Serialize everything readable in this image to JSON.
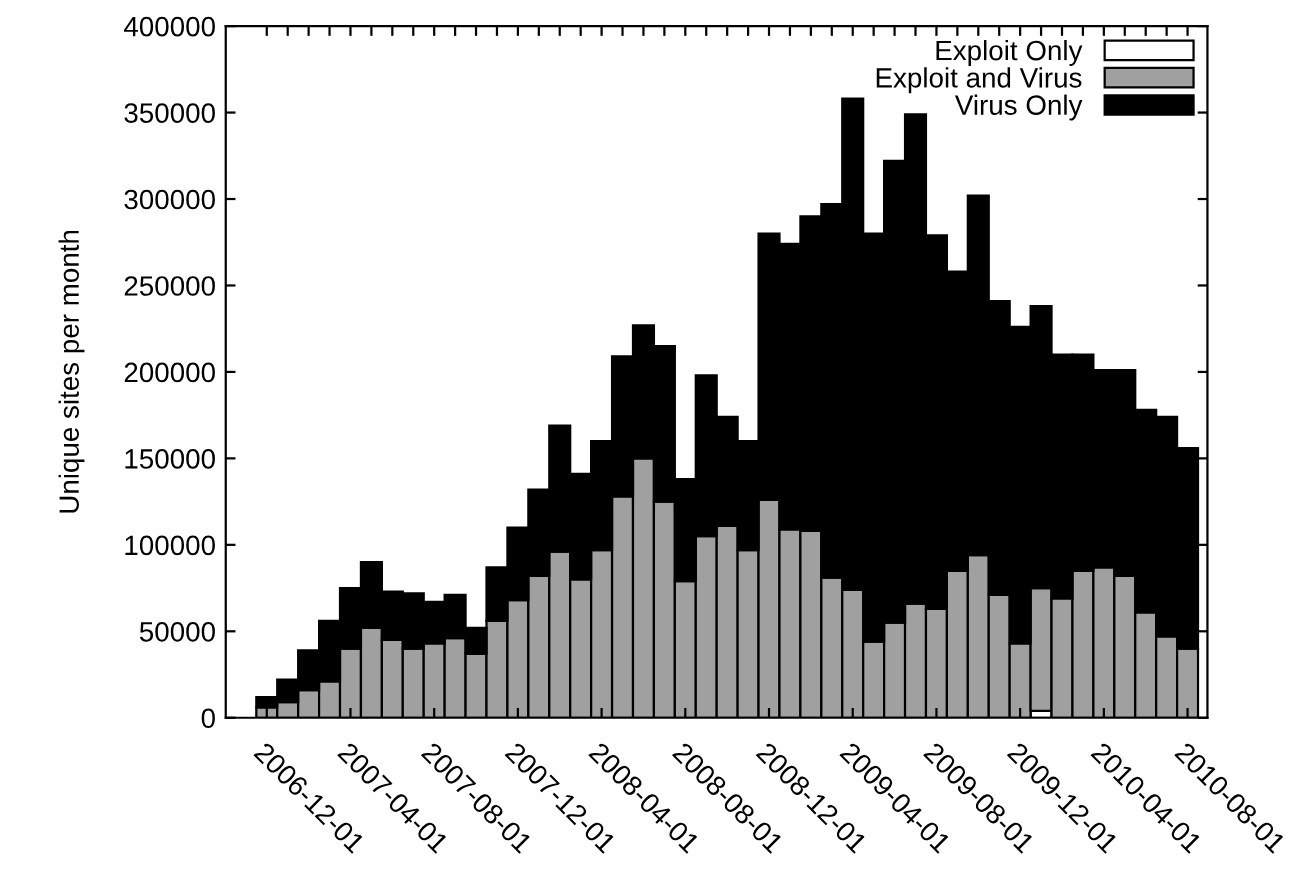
{
  "chart_data": {
    "type": "bar",
    "stacked": true,
    "ylabel": "Unique sites per month",
    "categories": [
      "2006-12-01",
      null,
      null,
      null,
      "2007-04-01",
      null,
      null,
      null,
      "2007-08-01",
      null,
      null,
      null,
      "2007-12-01",
      null,
      null,
      null,
      "2008-04-01",
      null,
      null,
      null,
      "2008-08-01",
      null,
      null,
      null,
      "2008-12-01",
      null,
      null,
      null,
      "2009-04-01",
      null,
      null,
      null,
      "2009-08-01",
      null,
      null,
      null,
      "2009-12-01",
      null,
      null,
      null,
      "2010-04-01",
      null,
      null,
      null,
      "2010-08-01"
    ],
    "series": [
      {
        "name": "Exploit Only",
        "color": "#ffffff",
        "values": [
          0,
          0,
          0,
          0,
          0,
          0,
          0,
          0,
          0,
          0,
          0,
          0,
          0,
          0,
          0,
          0,
          0,
          0,
          0,
          0,
          0,
          0,
          0,
          0,
          0,
          0,
          0,
          0,
          0,
          0,
          0,
          0,
          0,
          0,
          null,
          0,
          0,
          4000,
          0,
          0,
          0,
          0,
          0,
          0,
          null
        ]
      },
      {
        "name": "Exploit and Virus",
        "color": "#a0a0a0",
        "values": [
          6000,
          9000,
          16000,
          21000,
          40000,
          52000,
          45000,
          40000,
          43000,
          46000,
          37000,
          56000,
          68000,
          82000,
          96000,
          80000,
          97000,
          128000,
          150000,
          125000,
          79000,
          105000,
          111000,
          97000,
          126000,
          109000,
          108000,
          81000,
          74000,
          44000,
          55000,
          66000,
          63000,
          85000,
          94000,
          71000,
          43000,
          71000,
          69000,
          85000,
          87000,
          82000,
          61000,
          47000,
          40000
        ]
      },
      {
        "name": "Virus Only",
        "color": "#000000",
        "values": [
          6000,
          13000,
          23000,
          35000,
          35000,
          38000,
          28000,
          32000,
          24000,
          25000,
          15000,
          31000,
          42000,
          50000,
          73000,
          61000,
          63000,
          81000,
          77000,
          90000,
          59000,
          93000,
          63000,
          63000,
          154000,
          165000,
          182000,
          216000,
          284000,
          236000,
          267000,
          283000,
          216000,
          173000,
          208000,
          170000,
          183000,
          163000,
          141000,
          125000,
          114000,
          119000,
          117000,
          127000,
          116000
        ]
      }
    ],
    "ylim": [
      0,
      400000
    ],
    "yticks": [
      0,
      50000,
      100000,
      150000,
      200000,
      250000,
      300000,
      350000,
      400000
    ],
    "legend": "top right"
  }
}
